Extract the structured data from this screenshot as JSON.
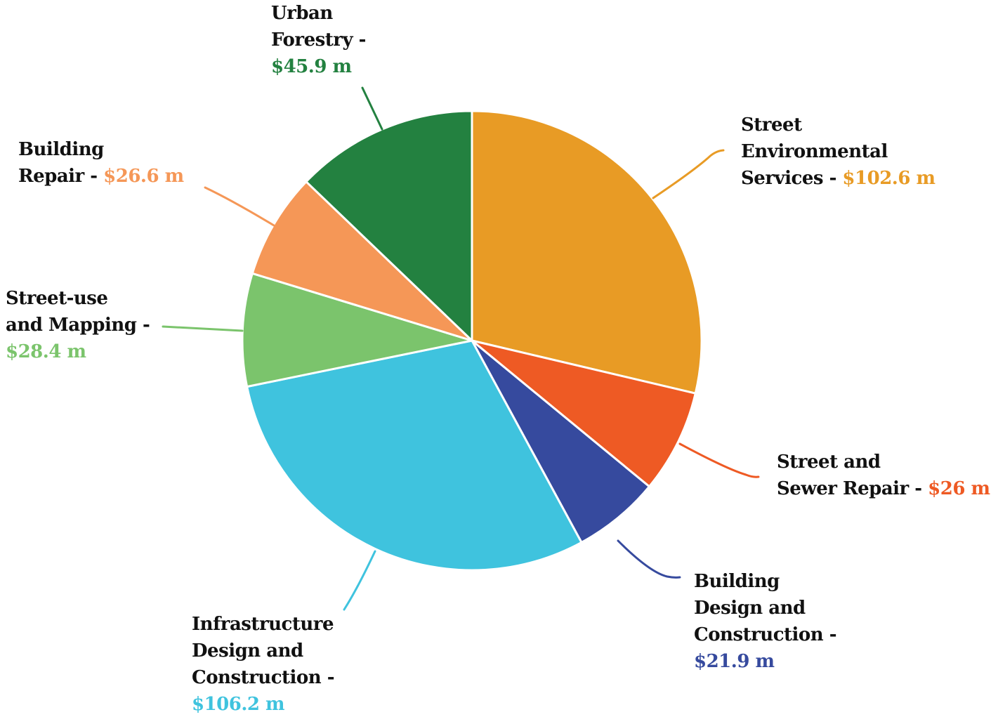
{
  "chart_data": {
    "type": "pie",
    "unit": "m",
    "slices": [
      {
        "name": "Street Environmental Services",
        "label_lines": [
          "Street",
          "Environmental",
          "Services -"
        ],
        "value_text": "$102.6 m",
        "value": 102.6,
        "color": "#E89B25"
      },
      {
        "name": "Street and Sewer Repair",
        "label_lines": [
          "Street and",
          "Sewer Repair -"
        ],
        "value_text": "$26 m",
        "value": 26,
        "color": "#EE5A24"
      },
      {
        "name": "Building Design and Construction",
        "label_lines": [
          "Building",
          "Design and",
          "Construction -"
        ],
        "value_text": "$21.9 m",
        "value": 21.9,
        "color": "#364A9E"
      },
      {
        "name": "Infrastructure Design and Construction",
        "label_lines": [
          "Infrastructure",
          "Design and",
          "Construction -"
        ],
        "value_text": "$106.2 m",
        "value": 106.2,
        "color": "#3FC3DE"
      },
      {
        "name": "Street-use and Mapping",
        "label_lines": [
          "Street-use",
          "and Mapping -"
        ],
        "value_text": "$28.4 m",
        "value": 28.4,
        "color": "#7BC46C"
      },
      {
        "name": "Building Repair",
        "label_lines": [
          "Building",
          "Repair -"
        ],
        "value_text": "$26.6 m",
        "value": 26.6,
        "color": "#F59757"
      },
      {
        "name": "Urban Forestry",
        "label_lines": [
          "Urban",
          "Forestry -"
        ],
        "value_text": "$45.9 m",
        "value": 45.9,
        "color": "#238140"
      }
    ]
  }
}
